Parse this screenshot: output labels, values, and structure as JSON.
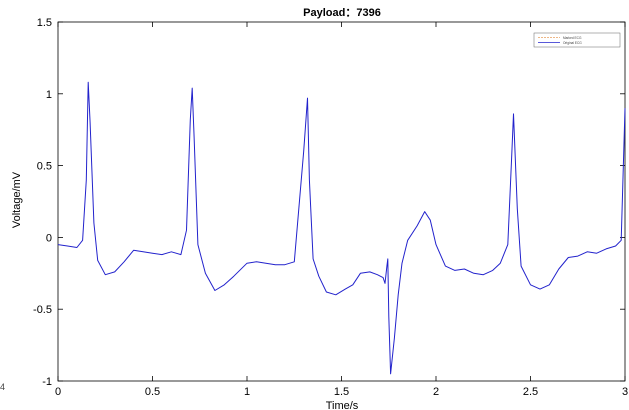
{
  "chart_data": {
    "type": "line",
    "title": "Payload：7396",
    "xlabel": "Time/s",
    "ylabel": "Voltage/mV",
    "xlim": [
      0,
      3
    ],
    "ylim": [
      -1,
      1.5
    ],
    "xticks": [
      0,
      0.5,
      1,
      1.5,
      2,
      2.5,
      3
    ],
    "xtick_labels": [
      "0",
      "0.5",
      "1",
      "1.5",
      "2",
      "2.5",
      "3"
    ],
    "yticks": [
      -1,
      -0.5,
      0,
      0.5,
      1,
      1.5
    ],
    "ytick_labels": [
      "-1",
      "-0.5",
      "0",
      "0.5",
      "1",
      "1.5"
    ],
    "grid": false,
    "legend_position": "top-right",
    "series": [
      {
        "name": "Marked ECG",
        "color": "#e8a060",
        "style": "dashed",
        "x": [],
        "y": []
      },
      {
        "name": "Original ECG",
        "color": "#2222cc",
        "style": "solid",
        "x": [
          0,
          0.05,
          0.1,
          0.13,
          0.15,
          0.16,
          0.17,
          0.19,
          0.21,
          0.25,
          0.3,
          0.35,
          0.4,
          0.45,
          0.5,
          0.55,
          0.6,
          0.65,
          0.68,
          0.7,
          0.71,
          0.72,
          0.74,
          0.78,
          0.83,
          0.88,
          0.93,
          1.0,
          1.05,
          1.1,
          1.15,
          1.2,
          1.25,
          1.3,
          1.32,
          1.33,
          1.35,
          1.38,
          1.42,
          1.47,
          1.52,
          1.56,
          1.6,
          1.65,
          1.69,
          1.72,
          1.73,
          1.74,
          1.745,
          1.75,
          1.76,
          1.78,
          1.8,
          1.82,
          1.85,
          1.9,
          1.94,
          1.97,
          2.0,
          2.05,
          2.1,
          2.15,
          2.2,
          2.25,
          2.3,
          2.34,
          2.38,
          2.4,
          2.41,
          2.43,
          2.45,
          2.5,
          2.55,
          2.6,
          2.65,
          2.7,
          2.75,
          2.8,
          2.85,
          2.9,
          2.95,
          2.98,
          3.0
        ],
        "y": [
          -0.05,
          -0.06,
          -0.07,
          -0.02,
          0.4,
          1.08,
          0.8,
          0.1,
          -0.16,
          -0.26,
          -0.24,
          -0.17,
          -0.09,
          -0.1,
          -0.11,
          -0.12,
          -0.1,
          -0.12,
          0.05,
          0.82,
          1.04,
          0.7,
          -0.05,
          -0.25,
          -0.37,
          -0.33,
          -0.27,
          -0.18,
          -0.17,
          -0.18,
          -0.19,
          -0.19,
          -0.17,
          0.6,
          0.97,
          0.4,
          -0.15,
          -0.27,
          -0.38,
          -0.4,
          -0.36,
          -0.33,
          -0.25,
          -0.24,
          -0.26,
          -0.28,
          -0.32,
          -0.2,
          -0.15,
          -0.55,
          -0.95,
          -0.7,
          -0.4,
          -0.18,
          -0.02,
          0.08,
          0.18,
          0.12,
          -0.05,
          -0.2,
          -0.23,
          -0.22,
          -0.25,
          -0.26,
          -0.23,
          -0.18,
          -0.05,
          0.55,
          0.86,
          0.2,
          -0.2,
          -0.33,
          -0.36,
          -0.33,
          -0.22,
          -0.14,
          -0.13,
          -0.1,
          -0.11,
          -0.08,
          -0.06,
          -0.02,
          0.9
        ]
      }
    ]
  },
  "stray_marks": {
    "left_edge_fragment": "4"
  }
}
